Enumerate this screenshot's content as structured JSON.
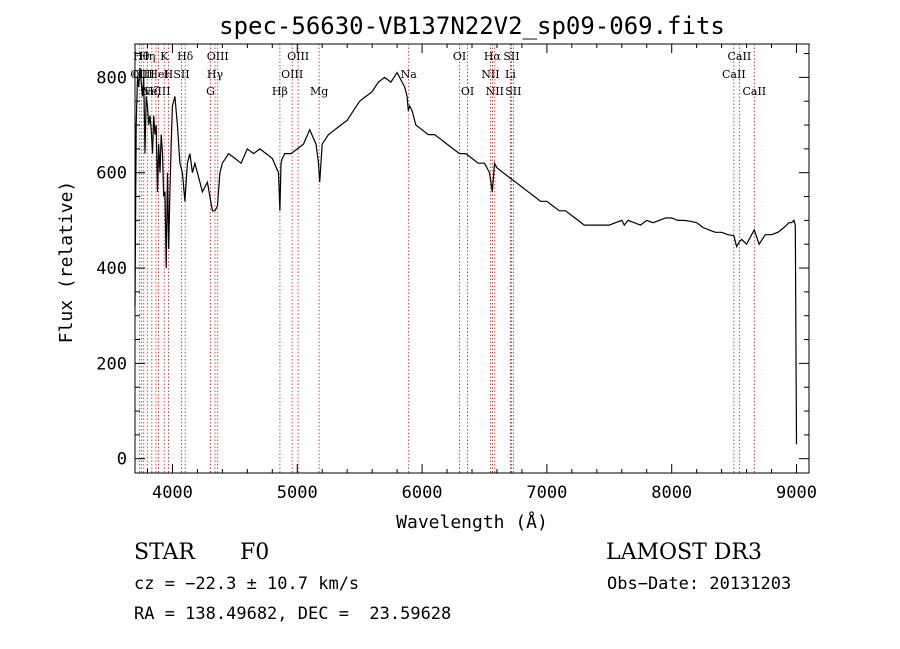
{
  "chart_data": {
    "type": "line",
    "title": "spec-56630-VB137N22V2_sp09-069.fits",
    "xlabel": "Wavelength (Å)",
    "ylabel": "Flux (relative)",
    "xlim": [
      3700,
      9100
    ],
    "ylim": [
      -30,
      870
    ],
    "xticks": [
      4000,
      5000,
      6000,
      7000,
      8000,
      9000
    ],
    "yticks": [
      0,
      200,
      400,
      600,
      800
    ],
    "series": [
      {
        "name": "spectrum",
        "x": [
          3700,
          3710,
          3720,
          3730,
          3740,
          3750,
          3760,
          3770,
          3780,
          3790,
          3800,
          3810,
          3820,
          3830,
          3840,
          3850,
          3860,
          3870,
          3880,
          3890,
          3900,
          3910,
          3920,
          3930,
          3940,
          3950,
          3960,
          3970,
          3980,
          3990,
          4000,
          4020,
          4040,
          4060,
          4080,
          4100,
          4120,
          4140,
          4160,
          4180,
          4200,
          4220,
          4240,
          4260,
          4280,
          4300,
          4320,
          4340,
          4360,
          4380,
          4400,
          4450,
          4500,
          4550,
          4600,
          4650,
          4700,
          4750,
          4800,
          4850,
          4861,
          4870,
          4880,
          4900,
          4950,
          5000,
          5050,
          5100,
          5150,
          5170,
          5180,
          5200,
          5250,
          5300,
          5350,
          5400,
          5450,
          5500,
          5550,
          5600,
          5650,
          5700,
          5750,
          5800,
          5820,
          5840,
          5860,
          5880,
          5890,
          5900,
          5920,
          5950,
          6000,
          6050,
          6100,
          6150,
          6200,
          6250,
          6300,
          6350,
          6400,
          6450,
          6500,
          6520,
          6540,
          6563,
          6580,
          6600,
          6650,
          6700,
          6750,
          6800,
          6850,
          6900,
          6950,
          7000,
          7050,
          7100,
          7150,
          7200,
          7250,
          7300,
          7350,
          7400,
          7450,
          7500,
          7550,
          7600,
          7620,
          7650,
          7700,
          7750,
          7800,
          7850,
          7900,
          7950,
          8000,
          8050,
          8100,
          8150,
          8200,
          8250,
          8300,
          8350,
          8400,
          8450,
          8498,
          8520,
          8542,
          8560,
          8600,
          8640,
          8662,
          8700,
          8750,
          8800,
          8850,
          8900,
          8940,
          8960,
          8980,
          8990,
          9000
        ],
        "values": [
          320,
          700,
          800,
          780,
          820,
          790,
          760,
          800,
          640,
          760,
          740,
          700,
          720,
          690,
          640,
          720,
          680,
          700,
          560,
          660,
          600,
          680,
          640,
          550,
          560,
          400,
          600,
          440,
          560,
          660,
          740,
          760,
          700,
          620,
          600,
          540,
          620,
          640,
          600,
          620,
          600,
          580,
          560,
          570,
          580,
          550,
          520,
          520,
          530,
          600,
          620,
          640,
          630,
          620,
          650,
          640,
          650,
          640,
          630,
          600,
          520,
          620,
          630,
          640,
          640,
          650,
          660,
          690,
          660,
          620,
          580,
          660,
          680,
          690,
          700,
          710,
          730,
          750,
          760,
          770,
          790,
          800,
          790,
          810,
          800,
          790,
          780,
          760,
          730,
          740,
          730,
          700,
          690,
          680,
          680,
          670,
          660,
          650,
          640,
          640,
          630,
          620,
          620,
          610,
          600,
          560,
          620,
          610,
          600,
          590,
          580,
          570,
          560,
          550,
          540,
          540,
          530,
          520,
          520,
          510,
          500,
          490,
          490,
          490,
          490,
          490,
          495,
          500,
          490,
          500,
          495,
          490,
          500,
          495,
          500,
          505,
          505,
          500,
          500,
          498,
          495,
          485,
          480,
          475,
          475,
          470,
          468,
          445,
          455,
          460,
          450,
          470,
          480,
          450,
          470,
          470,
          475,
          485,
          495,
          495,
          500,
          490,
          30
        ]
      }
    ],
    "line_labels": [
      {
        "x": 3734,
        "row": 1,
        "text": "OII"
      },
      {
        "x": 3750,
        "row": 0,
        "text": "Hθ"
      },
      {
        "x": 3770,
        "row": 1,
        "text": "OIII"
      },
      {
        "x": 3798,
        "row": 0,
        "text": "Hη"
      },
      {
        "x": 3835,
        "row": 2,
        "text": "Hζ"
      },
      {
        "x": 3868,
        "row": 2,
        "text": "NeIII"
      },
      {
        "x": 3889,
        "row": 1,
        "text": "HeI"
      },
      {
        "x": 3934,
        "row": 0,
        "text": "K"
      },
      {
        "x": 3968,
        "row": 1,
        "text": "H"
      },
      {
        "x": 4072,
        "row": 1,
        "text": "SII"
      },
      {
        "x": 4102,
        "row": 0,
        "text": "Hδ"
      },
      {
        "x": 4305,
        "row": 2,
        "text": "G"
      },
      {
        "x": 4341,
        "row": 1,
        "text": "Hγ"
      },
      {
        "x": 4363,
        "row": 0,
        "text": "OIII"
      },
      {
        "x": 4861,
        "row": 2,
        "text": "Hβ"
      },
      {
        "x": 4959,
        "row": 1,
        "text": "OIII"
      },
      {
        "x": 5007,
        "row": 0,
        "text": "OIII"
      },
      {
        "x": 5175,
        "row": 2,
        "text": "Mg"
      },
      {
        "x": 5893,
        "row": 1,
        "text": "Na"
      },
      {
        "x": 6300,
        "row": 0,
        "text": "OI"
      },
      {
        "x": 6364,
        "row": 2,
        "text": "OI"
      },
      {
        "x": 6548,
        "row": 1,
        "text": "NII"
      },
      {
        "x": 6563,
        "row": 0,
        "text": "Hα"
      },
      {
        "x": 6583,
        "row": 2,
        "text": "NII"
      },
      {
        "x": 6708,
        "row": 1,
        "text": "Li"
      },
      {
        "x": 6716,
        "row": 0,
        "text": "SII"
      },
      {
        "x": 6731,
        "row": 2,
        "text": "SII"
      },
      {
        "x": 8498,
        "row": 1,
        "text": "CaII"
      },
      {
        "x": 8542,
        "row": 0,
        "text": "CaII"
      },
      {
        "x": 8662,
        "row": 2,
        "text": "CaII"
      }
    ]
  },
  "info": {
    "obj_class": "STAR",
    "subclass": "F0",
    "survey": "LAMOST DR3",
    "cz": "cz = −22.3 ± 10.7 km/s",
    "obs_date": "Obs−Date: 20131203",
    "radec": "RA = 138.49682, DEC =  23.59628"
  }
}
